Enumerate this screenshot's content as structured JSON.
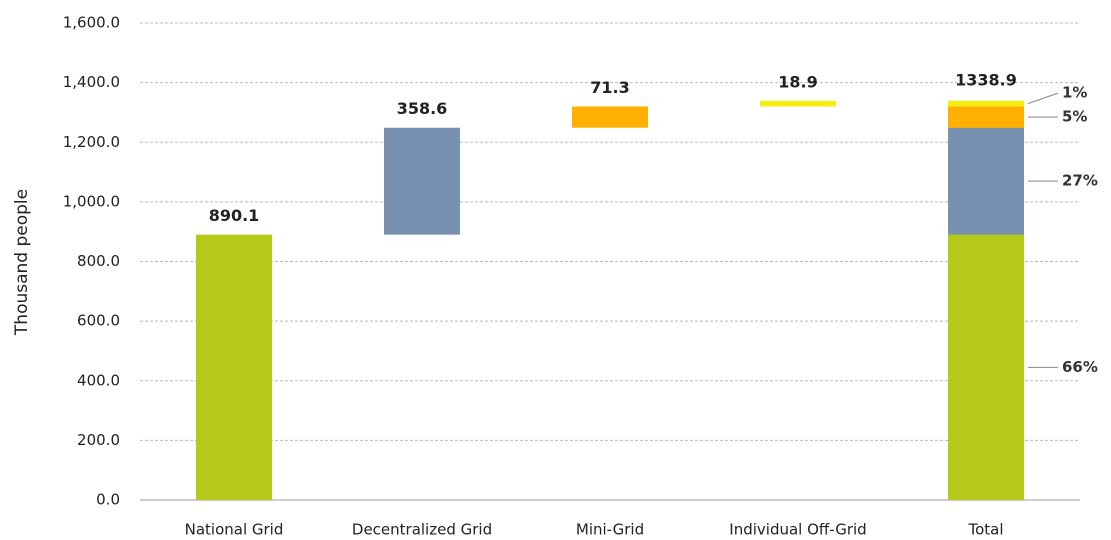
{
  "chart_data": {
    "type": "waterfall",
    "y_label": "Thousand people",
    "categories": [
      "National Grid",
      "Decentralized Grid",
      "Mini-Grid",
      "Individual Off-Grid",
      "Total"
    ],
    "values": [
      890.1,
      358.6,
      71.3,
      18.9,
      1338.9
    ],
    "is_total": [
      false,
      false,
      false,
      false,
      true
    ],
    "colors": [
      "#b5c918",
      "#7891b0",
      "#ffb000",
      "#f5ee10",
      "#b5c918"
    ],
    "shares": [
      66,
      27,
      5,
      1
    ],
    "share_labels": [
      "66%",
      "27%",
      "5%",
      "1%"
    ],
    "ylim": [
      0,
      1600
    ],
    "yticks": [
      {
        "value": 0,
        "label": "0.0"
      },
      {
        "value": 200,
        "label": "200.0"
      },
      {
        "value": 400,
        "label": "400.0"
      },
      {
        "value": 600,
        "label": "600.0"
      },
      {
        "value": 800,
        "label": "800.0"
      },
      {
        "value": 1000,
        "label": "1,000.0"
      },
      {
        "value": 1200,
        "label": "1,200.0"
      },
      {
        "value": 1400,
        "label": "1,400.0"
      },
      {
        "value": 1600,
        "label": "1,600.0"
      }
    ],
    "grid": true
  }
}
